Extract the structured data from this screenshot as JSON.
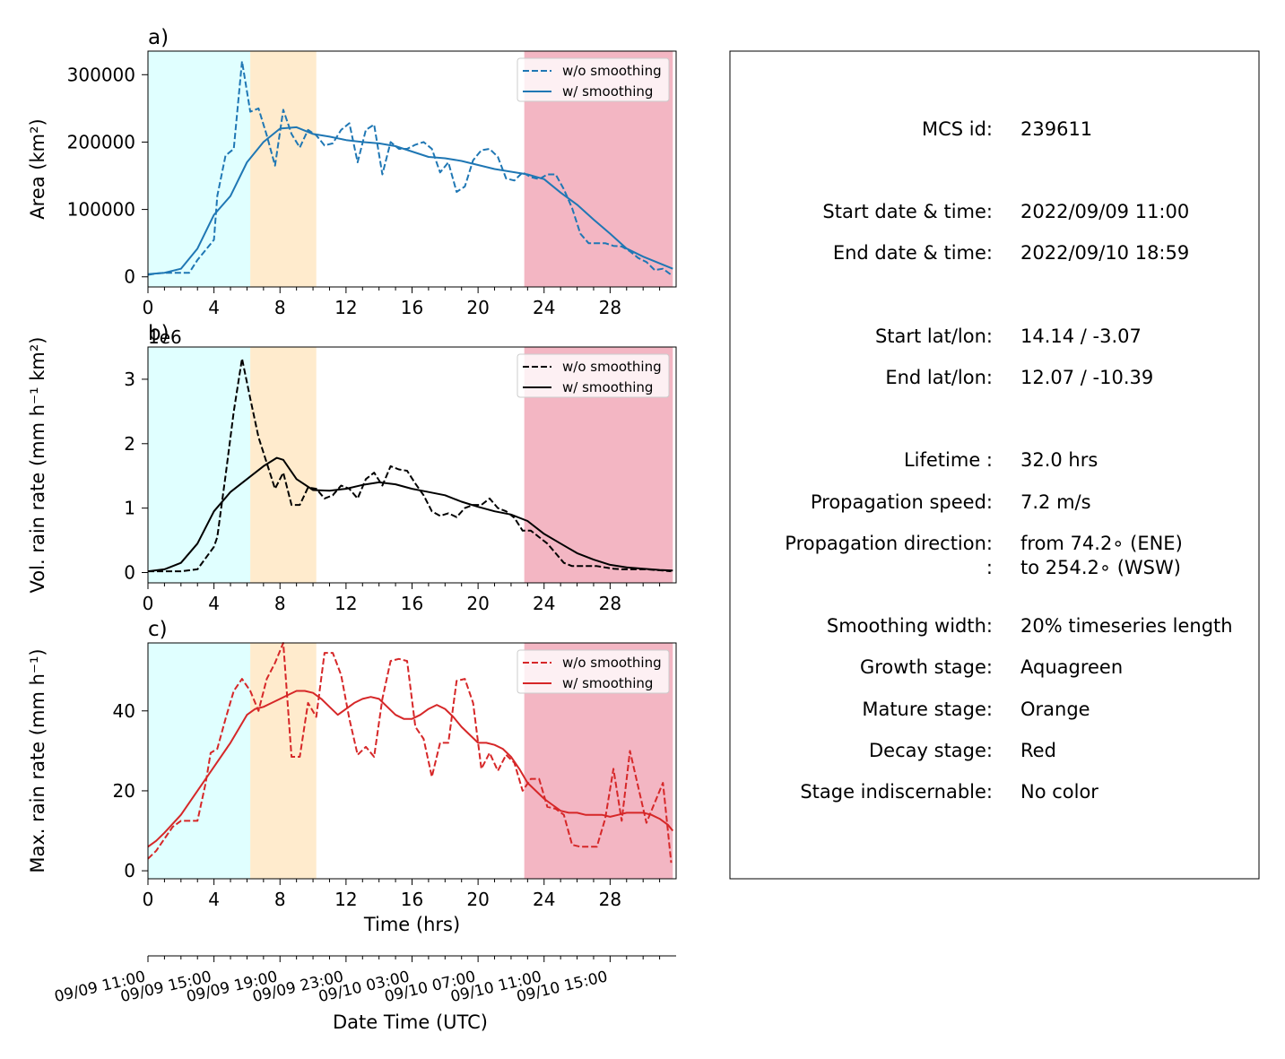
{
  "chart_data": [
    {
      "type": "line",
      "panel_label": "a)",
      "xlabel": "",
      "ylabel": "Area  (km²)",
      "xlim": [
        0,
        32
      ],
      "ylim": [
        -15000,
        335000
      ],
      "xticks": [
        0,
        4,
        8,
        12,
        16,
        20,
        24,
        28
      ],
      "xticks_minor": [
        1,
        2,
        3,
        5,
        6,
        7,
        9,
        10,
        11,
        13,
        14,
        15,
        17,
        18,
        19,
        21,
        22,
        23,
        25,
        26,
        27,
        29,
        30,
        31
      ],
      "yticks": [
        0,
        100000,
        200000,
        300000
      ],
      "stages": [
        {
          "name": "Growth stage",
          "from": 0,
          "to": 6.2,
          "color": "#e0ffff"
        },
        {
          "name": "Mature stage",
          "from": 6.2,
          "to": 10.2,
          "color": "#ffebcd"
        },
        {
          "name": "Decay stage",
          "from": 22.8,
          "to": 31.8,
          "color": "#f3b6c3"
        }
      ],
      "legend": {
        "position": "top-right",
        "entries": [
          "w/o smoothing",
          "w/ smoothing"
        ]
      },
      "series": [
        {
          "name": "w/o smoothing",
          "color": "#1f77b4",
          "dash": true,
          "x": [
            0,
            0.5,
            1,
            1.5,
            2,
            2.5,
            3,
            3.5,
            4,
            4.2,
            4.7,
            5.2,
            5.7,
            6.2,
            6.7,
            7.2,
            7.7,
            8.2,
            8.7,
            9.2,
            9.7,
            10.2,
            10.7,
            11.2,
            11.7,
            12.2,
            12.7,
            13.2,
            13.7,
            14.2,
            14.7,
            15.2,
            15.7,
            16.2,
            16.7,
            17.2,
            17.7,
            18.2,
            18.7,
            19.2,
            19.7,
            20.2,
            20.7,
            21.2,
            21.7,
            22.2,
            22.7,
            23.2,
            23.7,
            24.2,
            24.7,
            25.2,
            25.7,
            26.2,
            26.7,
            27.2,
            27.7,
            28.2,
            28.7,
            29.2,
            29.7,
            30.2,
            30.7,
            31.2,
            31.7
          ],
          "y": [
            3000,
            5000,
            6000,
            6000,
            6000,
            6000,
            25000,
            40000,
            55000,
            120000,
            180000,
            190000,
            320000,
            245000,
            250000,
            210000,
            165000,
            248000,
            212000,
            192000,
            218000,
            210000,
            195000,
            198000,
            218000,
            228000,
            170000,
            218000,
            226000,
            152000,
            200000,
            190000,
            190000,
            196000,
            200000,
            190000,
            155000,
            170000,
            126000,
            134000,
            173000,
            188000,
            190000,
            178000,
            146000,
            143000,
            155000,
            148000,
            145000,
            152000,
            152000,
            130000,
            102000,
            64000,
            50000,
            50000,
            50000,
            46000,
            45000,
            38000,
            28000,
            22000,
            10000,
            12000,
            3000
          ]
        },
        {
          "name": "w/ smoothing",
          "color": "#1f77b4",
          "dash": false,
          "x": [
            0,
            1,
            2,
            3,
            4,
            5,
            6,
            7,
            8,
            9,
            10,
            11,
            12,
            13,
            14,
            15,
            16,
            17,
            18,
            19,
            20,
            21,
            22,
            23,
            24,
            25,
            26,
            27,
            28,
            29,
            30,
            31,
            31.8
          ],
          "y": [
            4000,
            6000,
            12000,
            42000,
            92000,
            120000,
            170000,
            200000,
            220000,
            222000,
            212000,
            208000,
            203000,
            200000,
            198000,
            194000,
            186000,
            178000,
            176000,
            172000,
            166000,
            160000,
            156000,
            152000,
            145000,
            125000,
            107000,
            85000,
            64000,
            42000,
            30000,
            20000,
            12000
          ]
        }
      ]
    },
    {
      "type": "line",
      "panel_label": "b)",
      "offset_text": "1e6",
      "xlabel": "",
      "ylabel": "Vol. rain rate (mm h⁻¹ km²)",
      "xlim": [
        0,
        32
      ],
      "ylim": [
        -0.16,
        3.5
      ],
      "xticks": [
        0,
        4,
        8,
        12,
        16,
        20,
        24,
        28
      ],
      "xticks_minor": [
        1,
        2,
        3,
        5,
        6,
        7,
        9,
        10,
        11,
        13,
        14,
        15,
        17,
        18,
        19,
        21,
        22,
        23,
        25,
        26,
        27,
        29,
        30,
        31
      ],
      "yticks": [
        0,
        1,
        2,
        3
      ],
      "stages": [
        {
          "name": "Growth stage",
          "from": 0,
          "to": 6.2,
          "color": "#e0ffff"
        },
        {
          "name": "Mature stage",
          "from": 6.2,
          "to": 10.2,
          "color": "#ffebcd"
        },
        {
          "name": "Decay stage",
          "from": 22.8,
          "to": 31.8,
          "color": "#f3b6c3"
        }
      ],
      "legend": {
        "position": "top-right",
        "entries": [
          "w/o smoothing",
          "w/ smoothing"
        ]
      },
      "series": [
        {
          "name": "w/o smoothing",
          "color": "#000000",
          "dash": true,
          "x": [
            0,
            1,
            2,
            3,
            4,
            4.2,
            4.7,
            5.2,
            5.7,
            6.2,
            6.7,
            7.2,
            7.7,
            8.2,
            8.7,
            9.2,
            9.7,
            10.2,
            10.7,
            11.2,
            11.7,
            12.2,
            12.7,
            13.2,
            13.7,
            14.2,
            14.7,
            15.2,
            15.7,
            16.2,
            16.7,
            17.2,
            17.7,
            18.2,
            18.7,
            19.2,
            19.7,
            20.2,
            20.7,
            21.2,
            21.7,
            22.2,
            22.7,
            23.2,
            23.7,
            24.2,
            24.7,
            25.2,
            25.7,
            26.2,
            26.7,
            27.2,
            27.7,
            28.2,
            28.7,
            29.2,
            29.7,
            30.2,
            30.7,
            31.2,
            31.7
          ],
          "y": [
            0.02,
            0.02,
            0.02,
            0.05,
            0.4,
            0.55,
            1.5,
            2.5,
            3.32,
            2.7,
            2.1,
            1.7,
            1.3,
            1.55,
            1.05,
            1.05,
            1.32,
            1.3,
            1.15,
            1.2,
            1.35,
            1.3,
            1.15,
            1.45,
            1.55,
            1.35,
            1.65,
            1.6,
            1.58,
            1.38,
            1.2,
            0.95,
            0.88,
            0.92,
            0.86,
            1.0,
            1.05,
            1.05,
            1.15,
            1.0,
            0.95,
            0.85,
            0.65,
            0.65,
            0.55,
            0.45,
            0.3,
            0.15,
            0.1,
            0.1,
            0.1,
            0.1,
            0.08,
            0.06,
            0.05,
            0.05,
            0.05,
            0.05,
            0.04,
            0.03,
            0.02
          ]
        },
        {
          "name": "w/ smoothing",
          "color": "#000000",
          "dash": false,
          "x": [
            0,
            1,
            2,
            3,
            4,
            5,
            6,
            7,
            7.8,
            8.2,
            9,
            10,
            11,
            12,
            13,
            14,
            15,
            16,
            17,
            18,
            19,
            20,
            21,
            22,
            23,
            24,
            25,
            26,
            27,
            28,
            29,
            30,
            31,
            31.8
          ],
          "y": [
            0.02,
            0.05,
            0.15,
            0.45,
            0.95,
            1.25,
            1.45,
            1.65,
            1.78,
            1.75,
            1.45,
            1.28,
            1.27,
            1.3,
            1.36,
            1.4,
            1.37,
            1.3,
            1.25,
            1.2,
            1.1,
            1.02,
            0.95,
            0.9,
            0.8,
            0.6,
            0.45,
            0.3,
            0.2,
            0.12,
            0.08,
            0.06,
            0.04,
            0.03
          ]
        }
      ]
    },
    {
      "type": "line",
      "panel_label": "c)",
      "xlabel": "Time (hrs)",
      "ylabel": "Max. rain rate  (mm h⁻¹)",
      "xlim": [
        0,
        32
      ],
      "ylim": [
        -2,
        57
      ],
      "xticks": [
        0,
        4,
        8,
        12,
        16,
        20,
        24,
        28
      ],
      "xticks_minor": [
        1,
        2,
        3,
        5,
        6,
        7,
        9,
        10,
        11,
        13,
        14,
        15,
        17,
        18,
        19,
        21,
        22,
        23,
        25,
        26,
        27,
        29,
        30,
        31
      ],
      "yticks": [
        0,
        20,
        40
      ],
      "stages": [
        {
          "name": "Growth stage",
          "from": 0,
          "to": 6.2,
          "color": "#e0ffff"
        },
        {
          "name": "Mature stage",
          "from": 6.2,
          "to": 10.2,
          "color": "#ffebcd"
        },
        {
          "name": "Decay stage",
          "from": 22.8,
          "to": 31.8,
          "color": "#f3b6c3"
        }
      ],
      "legend": {
        "position": "top-right",
        "entries": [
          "w/o smoothing",
          "w/ smoothing"
        ]
      },
      "series": [
        {
          "name": "w/o smoothing",
          "color": "#d62728",
          "dash": true,
          "x": [
            0,
            0.5,
            1,
            1.5,
            2,
            2.5,
            3,
            3.5,
            3.8,
            4.2,
            4.7,
            5.2,
            5.7,
            6.2,
            6.7,
            7.2,
            7.7,
            8.2,
            8.7,
            9.2,
            9.7,
            10.2,
            10.7,
            11.2,
            11.7,
            12.2,
            12.7,
            13.2,
            13.7,
            14.2,
            14.7,
            15.2,
            15.7,
            16.2,
            16.7,
            17.2,
            17.7,
            18.2,
            18.7,
            19.2,
            19.7,
            20.2,
            20.7,
            21.2,
            21.7,
            22.2,
            22.7,
            23.2,
            23.7,
            24.2,
            24.7,
            25.2,
            25.7,
            26.2,
            26.7,
            27.2,
            27.7,
            28.2,
            28.7,
            29.2,
            29.7,
            30.2,
            30.7,
            31.2,
            31.7
          ],
          "y": [
            3,
            5,
            8,
            11,
            12.5,
            12.5,
            12.5,
            22,
            29.5,
            30.5,
            38,
            45,
            48,
            45,
            40,
            48,
            52,
            57,
            28.5,
            28.5,
            42,
            38.5,
            54.5,
            54.5,
            49,
            38,
            29,
            31,
            28.5,
            43,
            52.5,
            53,
            52.5,
            36,
            33,
            23.5,
            32,
            32,
            47.5,
            48,
            42,
            25.5,
            29.5,
            25,
            29,
            27,
            20,
            23,
            23,
            16,
            15.5,
            14,
            6.5,
            6,
            6,
            6,
            13,
            25.5,
            12.5,
            30,
            21,
            12,
            17,
            22,
            2
          ]
        },
        {
          "name": "w/ smoothing",
          "color": "#d62728",
          "dash": false,
          "x": [
            0,
            0.5,
            1,
            2,
            3,
            4,
            5,
            6,
            6.5,
            7,
            7.5,
            8,
            8.5,
            9,
            9.5,
            10,
            10.5,
            11,
            11.5,
            12,
            12.5,
            13,
            13.5,
            14,
            14.5,
            15,
            15.5,
            16,
            16.5,
            17,
            17.5,
            18,
            18.5,
            19,
            19.5,
            20,
            20.5,
            21,
            21.5,
            22,
            22.5,
            23,
            23.5,
            24,
            24.5,
            25,
            25.5,
            26,
            26.5,
            27,
            27.5,
            28,
            28.5,
            29,
            29.5,
            30,
            30.5,
            31,
            31.5,
            31.8
          ],
          "y": [
            6,
            7.5,
            9.5,
            14,
            20,
            26,
            32,
            39,
            40.5,
            41,
            42,
            43,
            44,
            45,
            45,
            44.5,
            43,
            41,
            39,
            40.5,
            42,
            43,
            43.5,
            43,
            41,
            39,
            38,
            38,
            39,
            40.5,
            41.5,
            40.5,
            38.5,
            36,
            34,
            32,
            32,
            31.5,
            30.5,
            28.5,
            25.5,
            22,
            20,
            18,
            16.5,
            15,
            14.5,
            14.5,
            14,
            14,
            14,
            13.5,
            14,
            14.5,
            14.5,
            14.5,
            14,
            13,
            11.5,
            10
          ]
        }
      ]
    },
    {
      "type": "datetime_axis",
      "xlabel": "Date Time (UTC)",
      "tick_labels": [
        "09/09 11:00",
        "09/09 15:00",
        "09/09 19:00",
        "09/09 23:00",
        "09/10 03:00",
        "09/10 07:00",
        "09/10 11:00",
        "09/10 15:00"
      ],
      "tick_hours": [
        0,
        4,
        8,
        12,
        16,
        20,
        24,
        28
      ],
      "minor_tick_hours": [
        1,
        2,
        3,
        5,
        6,
        7,
        9,
        10,
        11,
        13,
        14,
        15,
        17,
        18,
        19,
        21,
        22,
        23,
        25,
        26,
        27,
        29,
        30,
        31
      ]
    }
  ],
  "info": [
    {
      "key": "MCS id:",
      "value": "239611"
    },
    {
      "key": "Start date & time:",
      "value": "2022/09/09 11:00"
    },
    {
      "key": "End date & time:",
      "value": "2022/09/10 18:59"
    },
    {
      "key": "Start lat/lon:",
      "value": "14.14 / -3.07"
    },
    {
      "key": "End lat/lon:",
      "value": "12.07 / -10.39"
    },
    {
      "key": "Lifetime :",
      "value": "32.0 hrs"
    },
    {
      "key": "Propagation speed:",
      "value": "7.2 m/s"
    },
    {
      "key": "Propagation direction:",
      "value": "from  74.2∘ (ENE)"
    },
    {
      "key": ":",
      "value": "to   254.2∘ (WSW)"
    },
    {
      "key": "Smoothing width:",
      "value": "20% timeseries length"
    },
    {
      "key": "Growth stage:",
      "value": "Aquagreen"
    },
    {
      "key": "Mature stage:",
      "value": "Orange"
    },
    {
      "key": "Decay stage:",
      "value": "Red"
    },
    {
      "key": "Stage indiscernable:",
      "value": "No color"
    }
  ]
}
